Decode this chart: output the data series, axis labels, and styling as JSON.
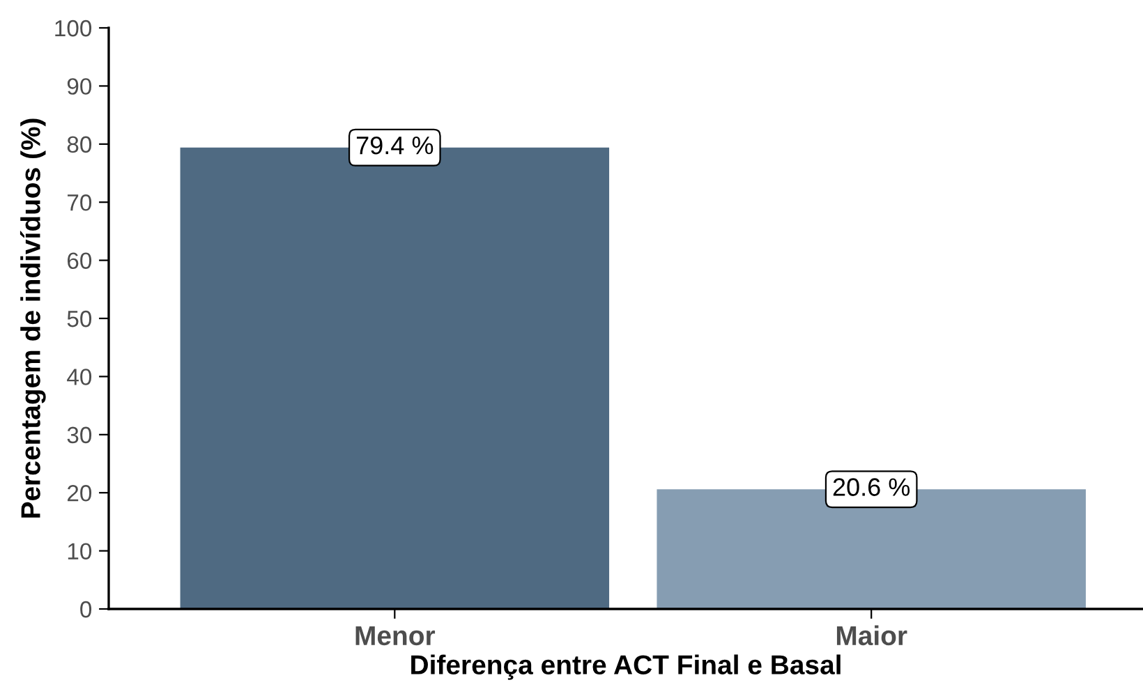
{
  "chart_data": {
    "type": "bar",
    "xlabel": "Diferença entre ACT Final e Basal",
    "ylabel": "Percentagem de indivíduos (%)",
    "categories": [
      "Menor",
      "Maior"
    ],
    "values": [
      79.4,
      20.6
    ],
    "colors": [
      "#4f6a82",
      "#869db2"
    ],
    "value_labels": [
      "79.4 %",
      "20.6 %"
    ],
    "ylim": [
      0,
      100
    ],
    "yticks": [
      0,
      10,
      20,
      30,
      40,
      50,
      60,
      70,
      80,
      90,
      100
    ],
    "grid": false,
    "legend": false
  }
}
